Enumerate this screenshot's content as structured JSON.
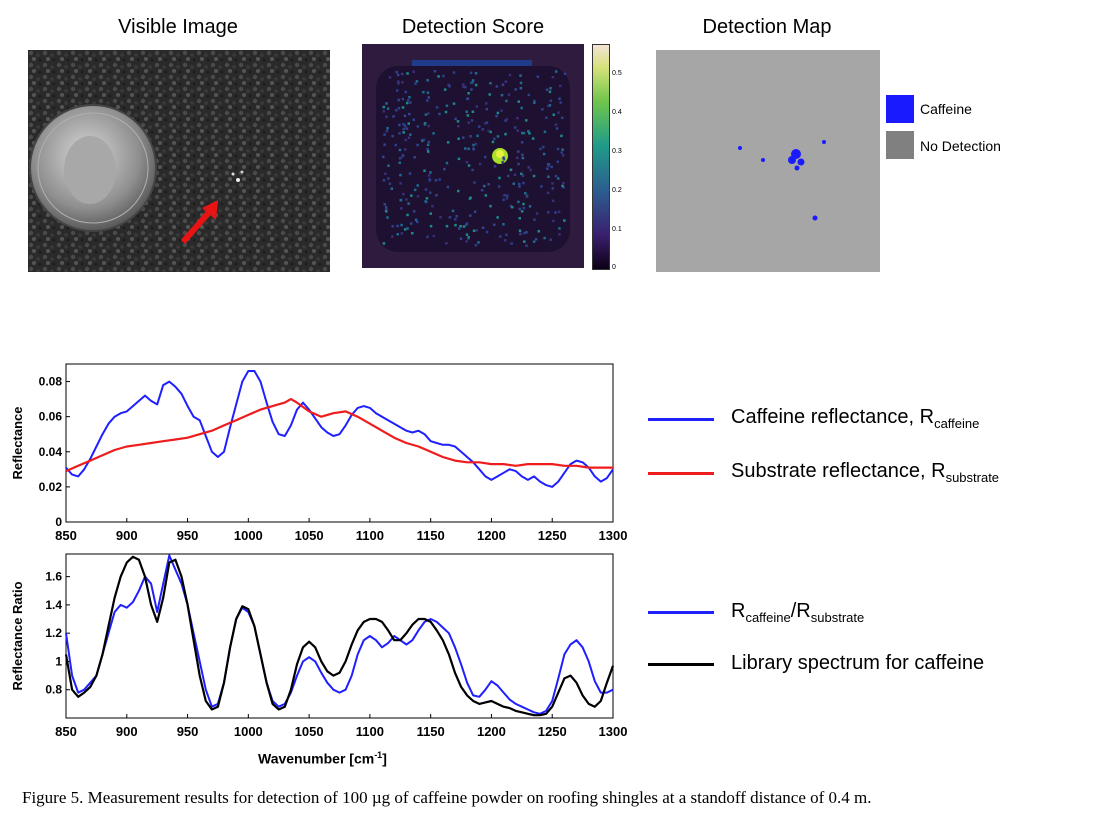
{
  "panels": {
    "visible_title": "Visible Image",
    "score_title": "Detection Score",
    "map_title": "Detection Map"
  },
  "colorbar": {
    "ticks": [
      "0.5",
      "0.4",
      "0.3",
      "0.2",
      "0.1",
      "0"
    ]
  },
  "map_legend": {
    "caffeine": "Caffeine",
    "no_detection": "No Detection",
    "caffeine_color": "#1a1aff",
    "no_detection_color": "#808080"
  },
  "legend_top": {
    "caffeine_main": "Caffeine reflectance, R",
    "caffeine_sub": "caffeine",
    "substrate_main": "Substrate reflectance, R",
    "substrate_sub": "substrate"
  },
  "legend_bottom": {
    "ratio_r1": "R",
    "ratio_sub1": "caffeine",
    "ratio_slash": "/R",
    "ratio_sub2": "substrate",
    "library": "Library spectrum for caffeine"
  },
  "axes": {
    "top_ylabel": "Reflectance",
    "bottom_ylabel": "Reflectance Ratio",
    "xlabel": "Wavenumber",
    "xlabel_unit": "[cm",
    "xlabel_sup": "-1",
    "xlabel_close": "]"
  },
  "caption": "Figure 5.  Measurement results for detection of 100 µg of caffeine powder on roofing shingles at a standoff distance of 0.4 m.",
  "chart_data": [
    {
      "type": "line",
      "ylabel": "Reflectance",
      "xlim": [
        850,
        1300
      ],
      "ylim": [
        0,
        0.09
      ],
      "xticks": [
        850,
        900,
        950,
        1000,
        1050,
        1100,
        1150,
        1200,
        1250,
        1300
      ],
      "yticks": [
        0,
        0.02,
        0.04,
        0.06,
        0.08
      ],
      "ytick_labels": [
        "0",
        "0.02",
        "0.04",
        "0.06",
        "0.08"
      ],
      "series": [
        {
          "name": "Caffeine reflectance, Rcaffeine",
          "color": "#1f1fff",
          "x": [
            850,
            855,
            860,
            865,
            870,
            875,
            880,
            885,
            890,
            895,
            900,
            905,
            910,
            915,
            920,
            925,
            930,
            935,
            940,
            945,
            950,
            955,
            960,
            965,
            970,
            975,
            980,
            985,
            990,
            995,
            1000,
            1005,
            1010,
            1015,
            1020,
            1025,
            1030,
            1035,
            1040,
            1045,
            1050,
            1055,
            1060,
            1065,
            1070,
            1075,
            1080,
            1085,
            1090,
            1095,
            1100,
            1105,
            1110,
            1115,
            1120,
            1125,
            1130,
            1135,
            1140,
            1145,
            1150,
            1155,
            1160,
            1165,
            1170,
            1175,
            1180,
            1185,
            1190,
            1195,
            1200,
            1205,
            1210,
            1215,
            1220,
            1225,
            1230,
            1235,
            1240,
            1245,
            1250,
            1255,
            1260,
            1265,
            1270,
            1275,
            1280,
            1285,
            1290,
            1295,
            1300
          ],
          "y": [
            0.031,
            0.027,
            0.026,
            0.03,
            0.036,
            0.043,
            0.05,
            0.056,
            0.06,
            0.062,
            0.063,
            0.066,
            0.069,
            0.072,
            0.069,
            0.067,
            0.078,
            0.08,
            0.077,
            0.073,
            0.066,
            0.06,
            0.058,
            0.049,
            0.04,
            0.037,
            0.04,
            0.054,
            0.067,
            0.08,
            0.086,
            0.086,
            0.08,
            0.068,
            0.057,
            0.05,
            0.049,
            0.055,
            0.064,
            0.068,
            0.064,
            0.059,
            0.054,
            0.051,
            0.049,
            0.05,
            0.055,
            0.061,
            0.065,
            0.066,
            0.065,
            0.062,
            0.06,
            0.058,
            0.056,
            0.054,
            0.052,
            0.051,
            0.052,
            0.05,
            0.046,
            0.045,
            0.044,
            0.044,
            0.043,
            0.04,
            0.037,
            0.034,
            0.03,
            0.026,
            0.024,
            0.026,
            0.028,
            0.03,
            0.029,
            0.026,
            0.024,
            0.026,
            0.023,
            0.021,
            0.02,
            0.023,
            0.028,
            0.033,
            0.035,
            0.034,
            0.031,
            0.026,
            0.023,
            0.025,
            0.03
          ]
        },
        {
          "name": "Substrate reflectance, Rsubstrate",
          "color": "#ee1c1c",
          "x": [
            850,
            860,
            870,
            880,
            890,
            900,
            910,
            920,
            930,
            940,
            950,
            960,
            970,
            980,
            990,
            1000,
            1010,
            1020,
            1030,
            1035,
            1040,
            1050,
            1060,
            1070,
            1080,
            1090,
            1100,
            1110,
            1120,
            1130,
            1140,
            1150,
            1160,
            1170,
            1180,
            1190,
            1200,
            1210,
            1220,
            1230,
            1240,
            1250,
            1260,
            1270,
            1280,
            1290,
            1300
          ],
          "y": [
            0.029,
            0.032,
            0.035,
            0.038,
            0.041,
            0.043,
            0.044,
            0.045,
            0.046,
            0.047,
            0.048,
            0.05,
            0.052,
            0.055,
            0.058,
            0.061,
            0.064,
            0.066,
            0.068,
            0.07,
            0.068,
            0.063,
            0.06,
            0.062,
            0.063,
            0.06,
            0.056,
            0.052,
            0.048,
            0.045,
            0.043,
            0.04,
            0.037,
            0.035,
            0.034,
            0.034,
            0.033,
            0.033,
            0.032,
            0.033,
            0.033,
            0.033,
            0.032,
            0.032,
            0.031,
            0.031,
            0.031
          ]
        }
      ]
    },
    {
      "type": "line",
      "ylabel": "Reflectance Ratio",
      "xlabel": "Wavenumber [cm-1]",
      "xlim": [
        850,
        1300
      ],
      "ylim": [
        0.6,
        1.76
      ],
      "xticks": [
        850,
        900,
        950,
        1000,
        1050,
        1100,
        1150,
        1200,
        1250,
        1300
      ],
      "yticks": [
        0.8,
        1.0,
        1.2,
        1.4,
        1.6
      ],
      "ytick_labels": [
        "0.8",
        "1",
        "1.2",
        "1.4",
        "1.6"
      ],
      "series": [
        {
          "name": "Rcaffeine/Rsubstrate",
          "color": "#1f1fff",
          "x": [
            850,
            855,
            860,
            865,
            870,
            875,
            880,
            885,
            890,
            895,
            900,
            905,
            910,
            915,
            920,
            925,
            930,
            935,
            940,
            945,
            950,
            955,
            960,
            965,
            970,
            975,
            980,
            985,
            990,
            995,
            1000,
            1005,
            1010,
            1015,
            1020,
            1025,
            1030,
            1035,
            1040,
            1045,
            1050,
            1055,
            1060,
            1065,
            1070,
            1075,
            1080,
            1085,
            1090,
            1095,
            1100,
            1105,
            1110,
            1115,
            1120,
            1125,
            1130,
            1135,
            1140,
            1145,
            1150,
            1155,
            1160,
            1165,
            1170,
            1175,
            1180,
            1185,
            1190,
            1195,
            1200,
            1205,
            1210,
            1215,
            1220,
            1225,
            1230,
            1235,
            1240,
            1245,
            1250,
            1255,
            1260,
            1265,
            1270,
            1275,
            1280,
            1285,
            1290,
            1295,
            1300
          ],
          "y": [
            1.2,
            0.9,
            0.78,
            0.8,
            0.85,
            0.9,
            1.05,
            1.2,
            1.35,
            1.4,
            1.38,
            1.42,
            1.5,
            1.6,
            1.55,
            1.35,
            1.55,
            1.75,
            1.65,
            1.55,
            1.4,
            1.2,
            1.0,
            0.8,
            0.68,
            0.7,
            0.85,
            1.1,
            1.3,
            1.38,
            1.35,
            1.25,
            1.05,
            0.85,
            0.72,
            0.68,
            0.7,
            0.78,
            0.9,
            1.0,
            1.03,
            1.0,
            0.92,
            0.85,
            0.8,
            0.78,
            0.8,
            0.9,
            1.05,
            1.15,
            1.18,
            1.15,
            1.1,
            1.13,
            1.18,
            1.15,
            1.12,
            1.15,
            1.22,
            1.28,
            1.3,
            1.28,
            1.24,
            1.2,
            1.1,
            0.98,
            0.85,
            0.76,
            0.75,
            0.8,
            0.86,
            0.83,
            0.78,
            0.73,
            0.7,
            0.68,
            0.66,
            0.64,
            0.63,
            0.65,
            0.72,
            0.88,
            1.05,
            1.12,
            1.15,
            1.1,
            1.0,
            0.86,
            0.78,
            0.78,
            0.8
          ]
        },
        {
          "name": "Library spectrum for caffeine",
          "color": "#000000",
          "x": [
            850,
            855,
            860,
            865,
            870,
            875,
            880,
            885,
            890,
            895,
            900,
            905,
            910,
            915,
            920,
            925,
            930,
            935,
            940,
            945,
            950,
            955,
            960,
            965,
            970,
            975,
            980,
            985,
            990,
            995,
            1000,
            1005,
            1010,
            1015,
            1020,
            1025,
            1030,
            1035,
            1040,
            1045,
            1050,
            1055,
            1060,
            1065,
            1070,
            1075,
            1080,
            1085,
            1090,
            1095,
            1100,
            1105,
            1110,
            1115,
            1120,
            1125,
            1130,
            1135,
            1140,
            1145,
            1150,
            1155,
            1160,
            1165,
            1170,
            1175,
            1180,
            1185,
            1190,
            1195,
            1200,
            1205,
            1210,
            1215,
            1220,
            1225,
            1230,
            1235,
            1240,
            1245,
            1250,
            1255,
            1260,
            1265,
            1270,
            1275,
            1280,
            1285,
            1290,
            1295,
            1300
          ],
          "y": [
            1.05,
            0.8,
            0.75,
            0.78,
            0.82,
            0.9,
            1.05,
            1.25,
            1.45,
            1.6,
            1.7,
            1.74,
            1.72,
            1.6,
            1.4,
            1.28,
            1.45,
            1.7,
            1.72,
            1.6,
            1.4,
            1.15,
            0.9,
            0.72,
            0.66,
            0.68,
            0.85,
            1.1,
            1.3,
            1.39,
            1.37,
            1.25,
            1.05,
            0.85,
            0.7,
            0.66,
            0.68,
            0.8,
            0.98,
            1.1,
            1.14,
            1.1,
            1.0,
            0.93,
            0.9,
            0.92,
            1.0,
            1.12,
            1.22,
            1.28,
            1.3,
            1.3,
            1.28,
            1.22,
            1.15,
            1.15,
            1.2,
            1.26,
            1.3,
            1.3,
            1.28,
            1.22,
            1.15,
            1.05,
            0.92,
            0.82,
            0.76,
            0.72,
            0.7,
            0.71,
            0.72,
            0.7,
            0.68,
            0.67,
            0.65,
            0.64,
            0.63,
            0.62,
            0.62,
            0.63,
            0.68,
            0.78,
            0.88,
            0.9,
            0.85,
            0.76,
            0.7,
            0.68,
            0.72,
            0.85,
            0.97
          ]
        }
      ]
    }
  ]
}
